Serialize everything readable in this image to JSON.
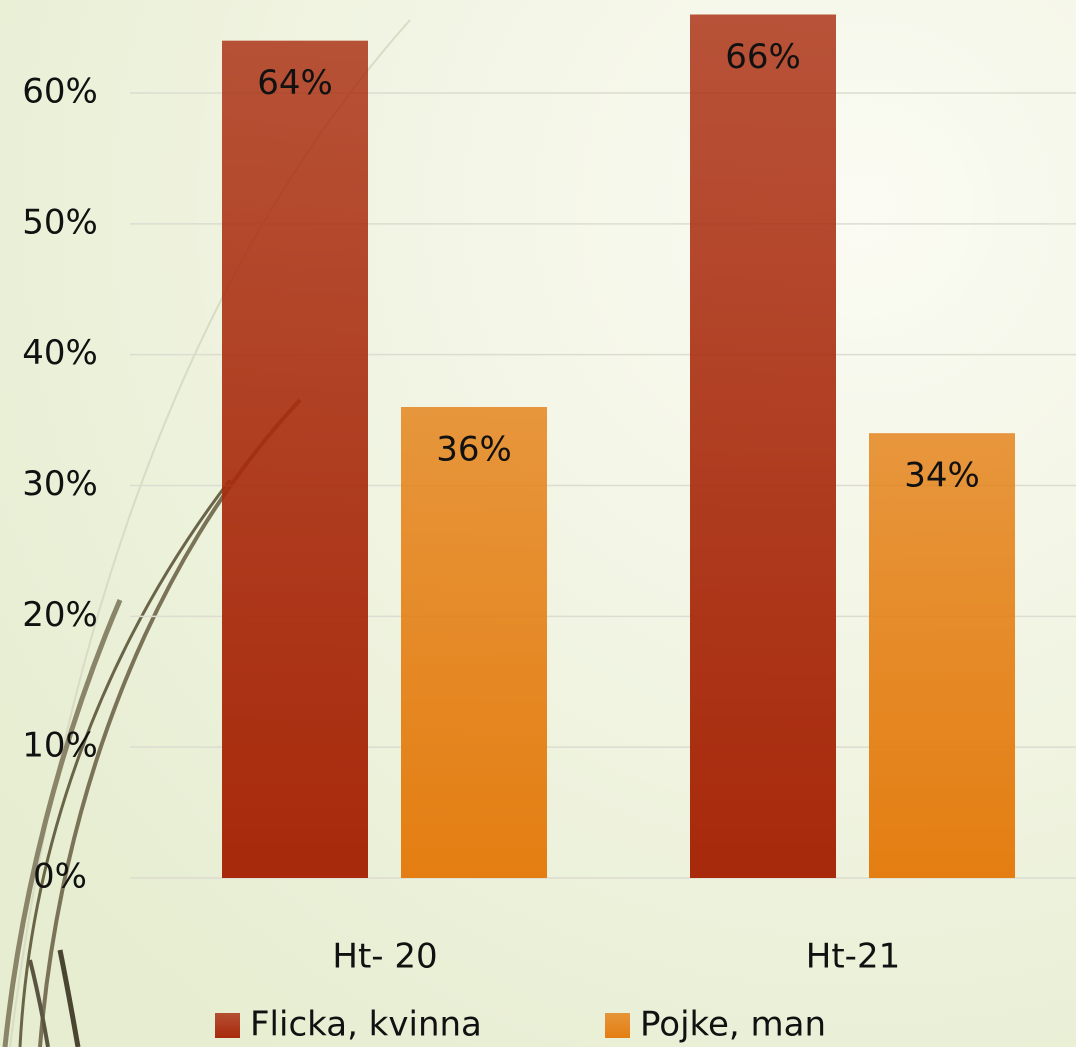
{
  "chart_data": {
    "type": "bar",
    "categories": [
      "Ht- 20",
      "Ht-21"
    ],
    "series": [
      {
        "name": "Flicka, kvinna",
        "color": "#a8290b",
        "values": [
          64,
          66
        ],
        "value_labels": [
          "64%",
          "66%"
        ]
      },
      {
        "name": "Pojke, man",
        "color": "#e47e12",
        "values": [
          36,
          34
        ],
        "value_labels": [
          "36%",
          "34%"
        ]
      }
    ],
    "ylim": [
      0,
      70
    ],
    "yticks": [
      {
        "value": 0,
        "label": "0%"
      },
      {
        "value": 10,
        "label": "10%"
      },
      {
        "value": 20,
        "label": "20%"
      },
      {
        "value": 30,
        "label": "30%"
      },
      {
        "value": 40,
        "label": "40%"
      },
      {
        "value": 50,
        "label": "50%"
      },
      {
        "value": 60,
        "label": "60%"
      }
    ],
    "grid": true,
    "legend": "bottom"
  }
}
